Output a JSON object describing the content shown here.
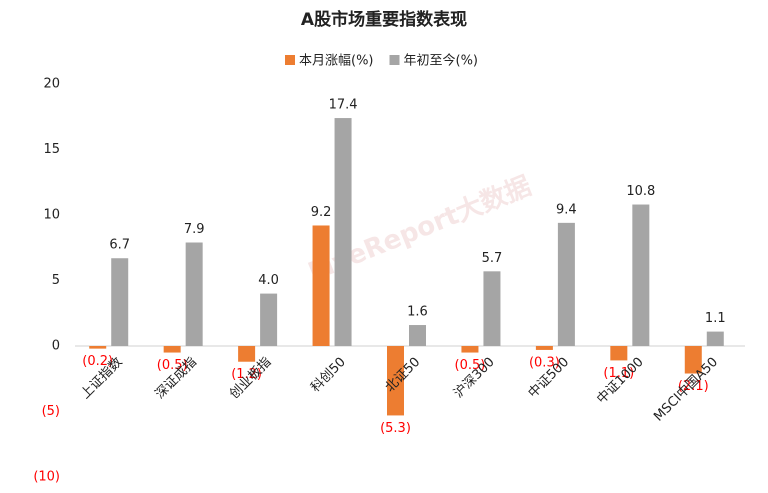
{
  "chart_data": {
    "type": "bar",
    "title": "A股市场重要指数表现",
    "watermark": "LiveReport大数据",
    "categories": [
      "上证指数",
      "深证成指",
      "创业板指",
      "科创50",
      "北证50",
      "沪深300",
      "中证500",
      "中证1000",
      "MSCI中国A50"
    ],
    "series": [
      {
        "name": "本月涨幅(%)",
        "color": "#ED7D31",
        "values": [
          -0.2,
          -0.5,
          -1.2,
          9.2,
          -5.3,
          -0.5,
          -0.3,
          -1.1,
          -2.1
        ],
        "value_labels": [
          "(0.2)",
          "(0.5)",
          "(1.2)",
          "9.2",
          "(5.3)",
          "(0.5)",
          "(0.3)",
          "(1.1)",
          "(2.1)"
        ]
      },
      {
        "name": "年初至今(%)",
        "color": "#A5A5A5",
        "values": [
          6.7,
          7.9,
          4.0,
          17.4,
          1.6,
          5.7,
          9.4,
          10.8,
          1.1
        ],
        "value_labels": [
          "6.7",
          "7.9",
          "4.0",
          "17.4",
          "1.6",
          "5.7",
          "9.4",
          "10.8",
          "1.1"
        ]
      }
    ],
    "ylim": [
      -10,
      20
    ],
    "yticks": [
      {
        "value": -10,
        "label": "(10)"
      },
      {
        "value": -5,
        "label": "(5)"
      },
      0,
      5,
      10,
      15,
      20
    ],
    "negative_color": "#FF0000",
    "legend": "top",
    "grid": false
  }
}
